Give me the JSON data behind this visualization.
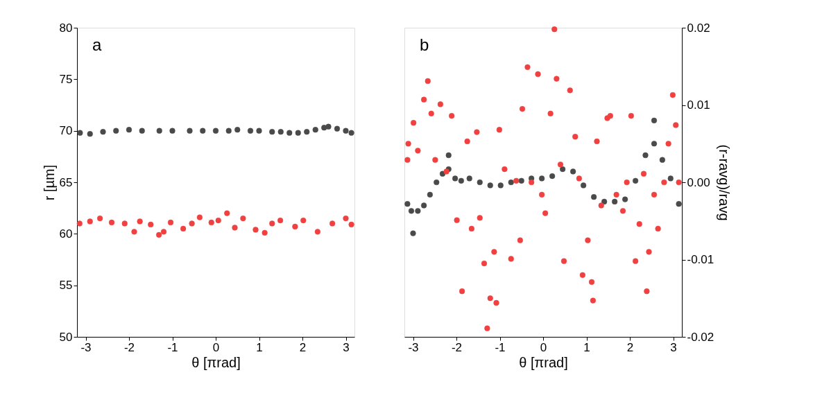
{
  "chart_data": [
    {
      "type": "scatter",
      "annotations": [
        "a"
      ],
      "xlabel": "θ [πrad]",
      "ylabel": "r [µm]",
      "xlim": [
        -3.2,
        3.2
      ],
      "xticks": [
        -3,
        -2,
        -1,
        0,
        1,
        2,
        3
      ],
      "ylim": [
        50,
        80
      ],
      "yticks": [
        50,
        55,
        60,
        65,
        70,
        75,
        80
      ],
      "grid": false,
      "marker": "circle",
      "series": [
        {
          "color": "#4a4a4a",
          "x": [
            -3.13,
            -2.9,
            -2.6,
            -2.3,
            -2.0,
            -1.7,
            -1.3,
            -1.0,
            -0.6,
            -0.3,
            0.0,
            0.3,
            0.5,
            0.8,
            1.0,
            1.3,
            1.5,
            1.7,
            1.9,
            2.1,
            2.3,
            2.5,
            2.6,
            2.8,
            3.0,
            3.13
          ],
          "values": [
            69.8,
            69.7,
            69.9,
            70.0,
            70.1,
            70.0,
            70.0,
            70.0,
            70.0,
            70.0,
            70.0,
            70.0,
            70.1,
            70.0,
            70.0,
            69.9,
            69.9,
            69.8,
            69.8,
            69.9,
            70.1,
            70.3,
            70.4,
            70.2,
            70.0,
            69.8
          ]
        },
        {
          "color": "#f04040",
          "x": [
            -3.14,
            -2.9,
            -2.67,
            -2.4,
            -2.1,
            -1.88,
            -1.75,
            -1.5,
            -1.31,
            -1.2,
            -1.04,
            -0.75,
            -0.55,
            -0.37,
            -0.1,
            0.06,
            0.26,
            0.44,
            0.63,
            0.92,
            1.13,
            1.3,
            1.49,
            1.83,
            2.02,
            2.35,
            2.69,
            3.0,
            3.13
          ],
          "values": [
            61.0,
            61.2,
            61.5,
            61.1,
            61.0,
            60.2,
            61.2,
            60.9,
            59.9,
            60.2,
            61.1,
            60.5,
            61.0,
            61.6,
            61.1,
            61.3,
            62.0,
            60.6,
            61.5,
            60.4,
            60.1,
            61.0,
            61.3,
            60.7,
            61.3,
            60.2,
            61.0,
            61.5,
            60.9
          ]
        }
      ]
    },
    {
      "type": "scatter",
      "annotations": [
        "b"
      ],
      "xlabel": "θ [πrad]",
      "ylabel": "(r-ravg)/ravg",
      "xlim": [
        -3.2,
        3.2
      ],
      "xticks": [
        -3,
        -2,
        -1,
        0,
        1,
        2,
        3
      ],
      "ylim": [
        -0.02,
        0.02
      ],
      "yticks": [
        -0.02,
        -0.01,
        {
          "value": 0,
          "label": "0.00"
        },
        0.01,
        0.02
      ],
      "grid": false,
      "marker": "circle",
      "series": [
        {
          "color": "#4a4a4a",
          "x": [
            -3.13,
            -3.04,
            -3.0,
            -2.89,
            -2.75,
            -2.61,
            -2.46,
            -2.32,
            -2.18,
            -2.18,
            -2.03,
            -1.89,
            -1.7,
            -1.46,
            -1.22,
            -0.98,
            -0.74,
            -0.5,
            -0.27,
            -0.03,
            0.21,
            0.45,
            0.69,
            0.93,
            1.17,
            1.41,
            1.65,
            1.89,
            2.13,
            2.36,
            2.56,
            2.56,
            2.75,
            2.94,
            3.13
          ],
          "values": [
            -0.0028,
            -0.0037,
            -0.0066,
            -0.0037,
            -0.003,
            -0.0016,
            0.0,
            0.0011,
            0.0017,
            0.0035,
            0.0005,
            0.0002,
            0.0005,
            0.0,
            -0.0004,
            -0.0004,
            0.0,
            0.0002,
            0.0005,
            0.0005,
            0.0008,
            0.0017,
            0.0014,
            -0.0004,
            -0.0019,
            -0.0025,
            -0.0025,
            -0.0022,
            0.0002,
            0.0035,
            0.005,
            0.008,
            0.0029,
            0.0005,
            -0.0028
          ]
        },
        {
          "color": "#f04040",
          "x": [
            -3.13,
            -3.11,
            -2.99,
            -2.89,
            -2.75,
            -2.66,
            -2.58,
            -2.49,
            -2.37,
            -2.23,
            -2.11,
            -1.99,
            -1.87,
            -1.75,
            -1.65,
            -1.53,
            -1.46,
            -1.36,
            -1.29,
            -1.22,
            -1.13,
            -1.08,
            -1.01,
            -0.89,
            -0.74,
            -0.62,
            -0.53,
            -0.48,
            -0.36,
            -0.27,
            -0.12,
            -0.03,
            0.05,
            0.17,
            0.26,
            0.31,
            0.4,
            0.48,
            0.62,
            0.74,
            0.83,
            0.91,
            1.03,
            1.12,
            1.15,
            1.24,
            1.34,
            1.48,
            1.55,
            1.69,
            1.84,
            1.93,
            2.03,
            2.13,
            2.22,
            2.32,
            2.39,
            2.44,
            2.56,
            2.65,
            2.79,
            2.89,
            2.99,
            3.06,
            3.13
          ],
          "values": [
            0.0029,
            0.005,
            0.0077,
            0.0041,
            0.0107,
            0.0131,
            0.0089,
            0.0029,
            0.0101,
            0.0014,
            0.0086,
            -0.0049,
            -0.0141,
            0.0053,
            -0.006,
            0.0065,
            -0.0046,
            -0.0105,
            -0.0189,
            -0.015,
            -0.009,
            -0.0156,
            0.0068,
            0.0017,
            -0.0099,
            0.0002,
            -0.0075,
            0.0095,
            0.0149,
            0.0,
            0.014,
            -0.0016,
            -0.004,
            0.0089,
            0.0198,
            0.0134,
            0.0023,
            -0.0102,
            0.0119,
            0.0059,
            0.0005,
            -0.012,
            -0.0075,
            -0.0129,
            -0.0153,
            0.0053,
            -0.003,
            0.0083,
            0.0086,
            -0.0016,
            -0.0037,
            0.0,
            0.0086,
            -0.0102,
            -0.0054,
            0.0011,
            -0.0141,
            -0.009,
            -0.0016,
            -0.006,
            0.0,
            0.005,
            0.0113,
            0.0074,
            0.0
          ]
        }
      ]
    }
  ]
}
